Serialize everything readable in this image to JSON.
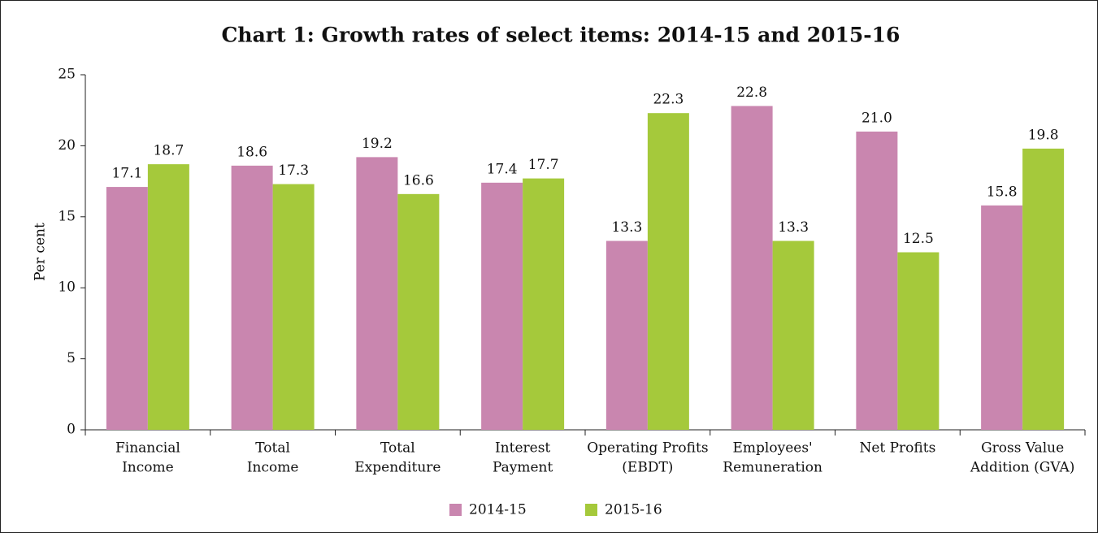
{
  "chart_data": {
    "type": "bar",
    "title": "Chart 1: Growth rates of select items: 2014-15 and 2015-16",
    "y_label": "Per cent",
    "categories": [
      [
        "Financial",
        "Income"
      ],
      [
        "Total",
        "Income"
      ],
      [
        "Total",
        "Expenditure"
      ],
      [
        "Interest",
        "Payment"
      ],
      [
        "Operating Profits",
        "(EBDT)"
      ],
      [
        "Employees'",
        "Remuneration"
      ],
      [
        "Net Profits"
      ],
      [
        "Gross Value",
        "Addition (GVA)"
      ]
    ],
    "series": [
      {
        "name": "2014-15",
        "color": "#c986af",
        "values": [
          17.1,
          18.6,
          19.2,
          17.4,
          13.3,
          22.8,
          21.0,
          15.8
        ],
        "value_labels": [
          "17.1",
          "18.6",
          "19.2",
          "17.4",
          "13.3",
          "22.8",
          "21.0",
          "15.8"
        ]
      },
      {
        "name": "2015-16",
        "color": "#a5c93b",
        "values": [
          18.7,
          17.3,
          16.6,
          17.7,
          22.3,
          13.3,
          12.5,
          19.8
        ],
        "value_labels": [
          "18.7",
          "17.3",
          "16.6",
          "17.7",
          "22.3",
          "13.3",
          "12.5",
          "19.8"
        ]
      }
    ],
    "ylim": [
      0,
      25
    ],
    "yticks": [
      0,
      5,
      10,
      15,
      20,
      25
    ],
    "grid": false,
    "legend": "bottom"
  }
}
